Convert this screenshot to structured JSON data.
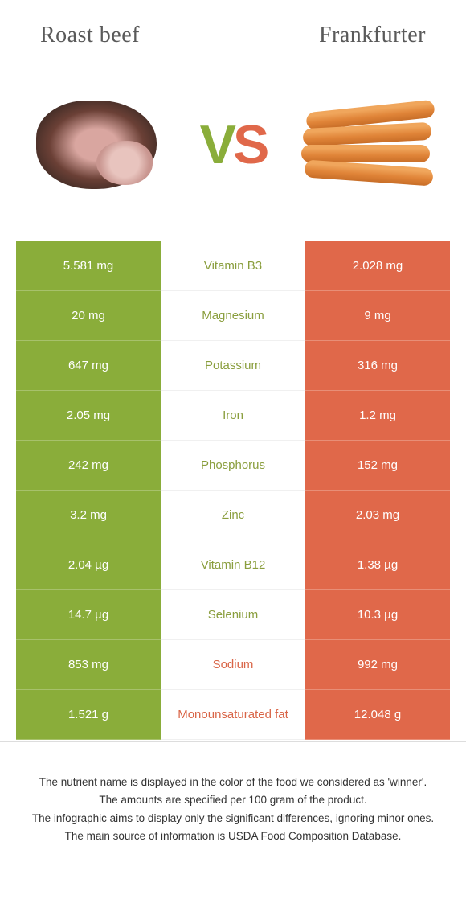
{
  "header": {
    "left_title": "Roast beef",
    "right_title": "Frankfurter"
  },
  "vs": {
    "v": "V",
    "s": "S"
  },
  "colors": {
    "left_food": "#8aad3a",
    "right_food": "#e0684a",
    "left_cell_bg": "#8aad3a",
    "right_cell_bg": "#e0684a",
    "mid_winner_left": "#8a9e3d",
    "mid_winner_right": "#d96547"
  },
  "rows": [
    {
      "left": "5.581 mg",
      "label": "Vitamin B3",
      "right": "2.028 mg",
      "winner": "left"
    },
    {
      "left": "20 mg",
      "label": "Magnesium",
      "right": "9 mg",
      "winner": "left"
    },
    {
      "left": "647 mg",
      "label": "Potassium",
      "right": "316 mg",
      "winner": "left"
    },
    {
      "left": "2.05 mg",
      "label": "Iron",
      "right": "1.2 mg",
      "winner": "left"
    },
    {
      "left": "242 mg",
      "label": "Phosphorus",
      "right": "152 mg",
      "winner": "left"
    },
    {
      "left": "3.2 mg",
      "label": "Zinc",
      "right": "2.03 mg",
      "winner": "left"
    },
    {
      "left": "2.04 µg",
      "label": "Vitamin B12",
      "right": "1.38 µg",
      "winner": "left"
    },
    {
      "left": "14.7 µg",
      "label": "Selenium",
      "right": "10.3 µg",
      "winner": "left"
    },
    {
      "left": "853 mg",
      "label": "Sodium",
      "right": "992 mg",
      "winner": "right"
    },
    {
      "left": "1.521 g",
      "label": "Monounsaturated fat",
      "right": "12.048 g",
      "winner": "right"
    }
  ],
  "footer": {
    "line1": "The nutrient name is displayed in the color of the food we considered as 'winner'.",
    "line2": "The amounts are specified per 100 gram of the product.",
    "line3": "The infographic aims to display only the significant differences, ignoring minor ones.",
    "line4": "The main source of information is USDA Food Composition Database."
  }
}
